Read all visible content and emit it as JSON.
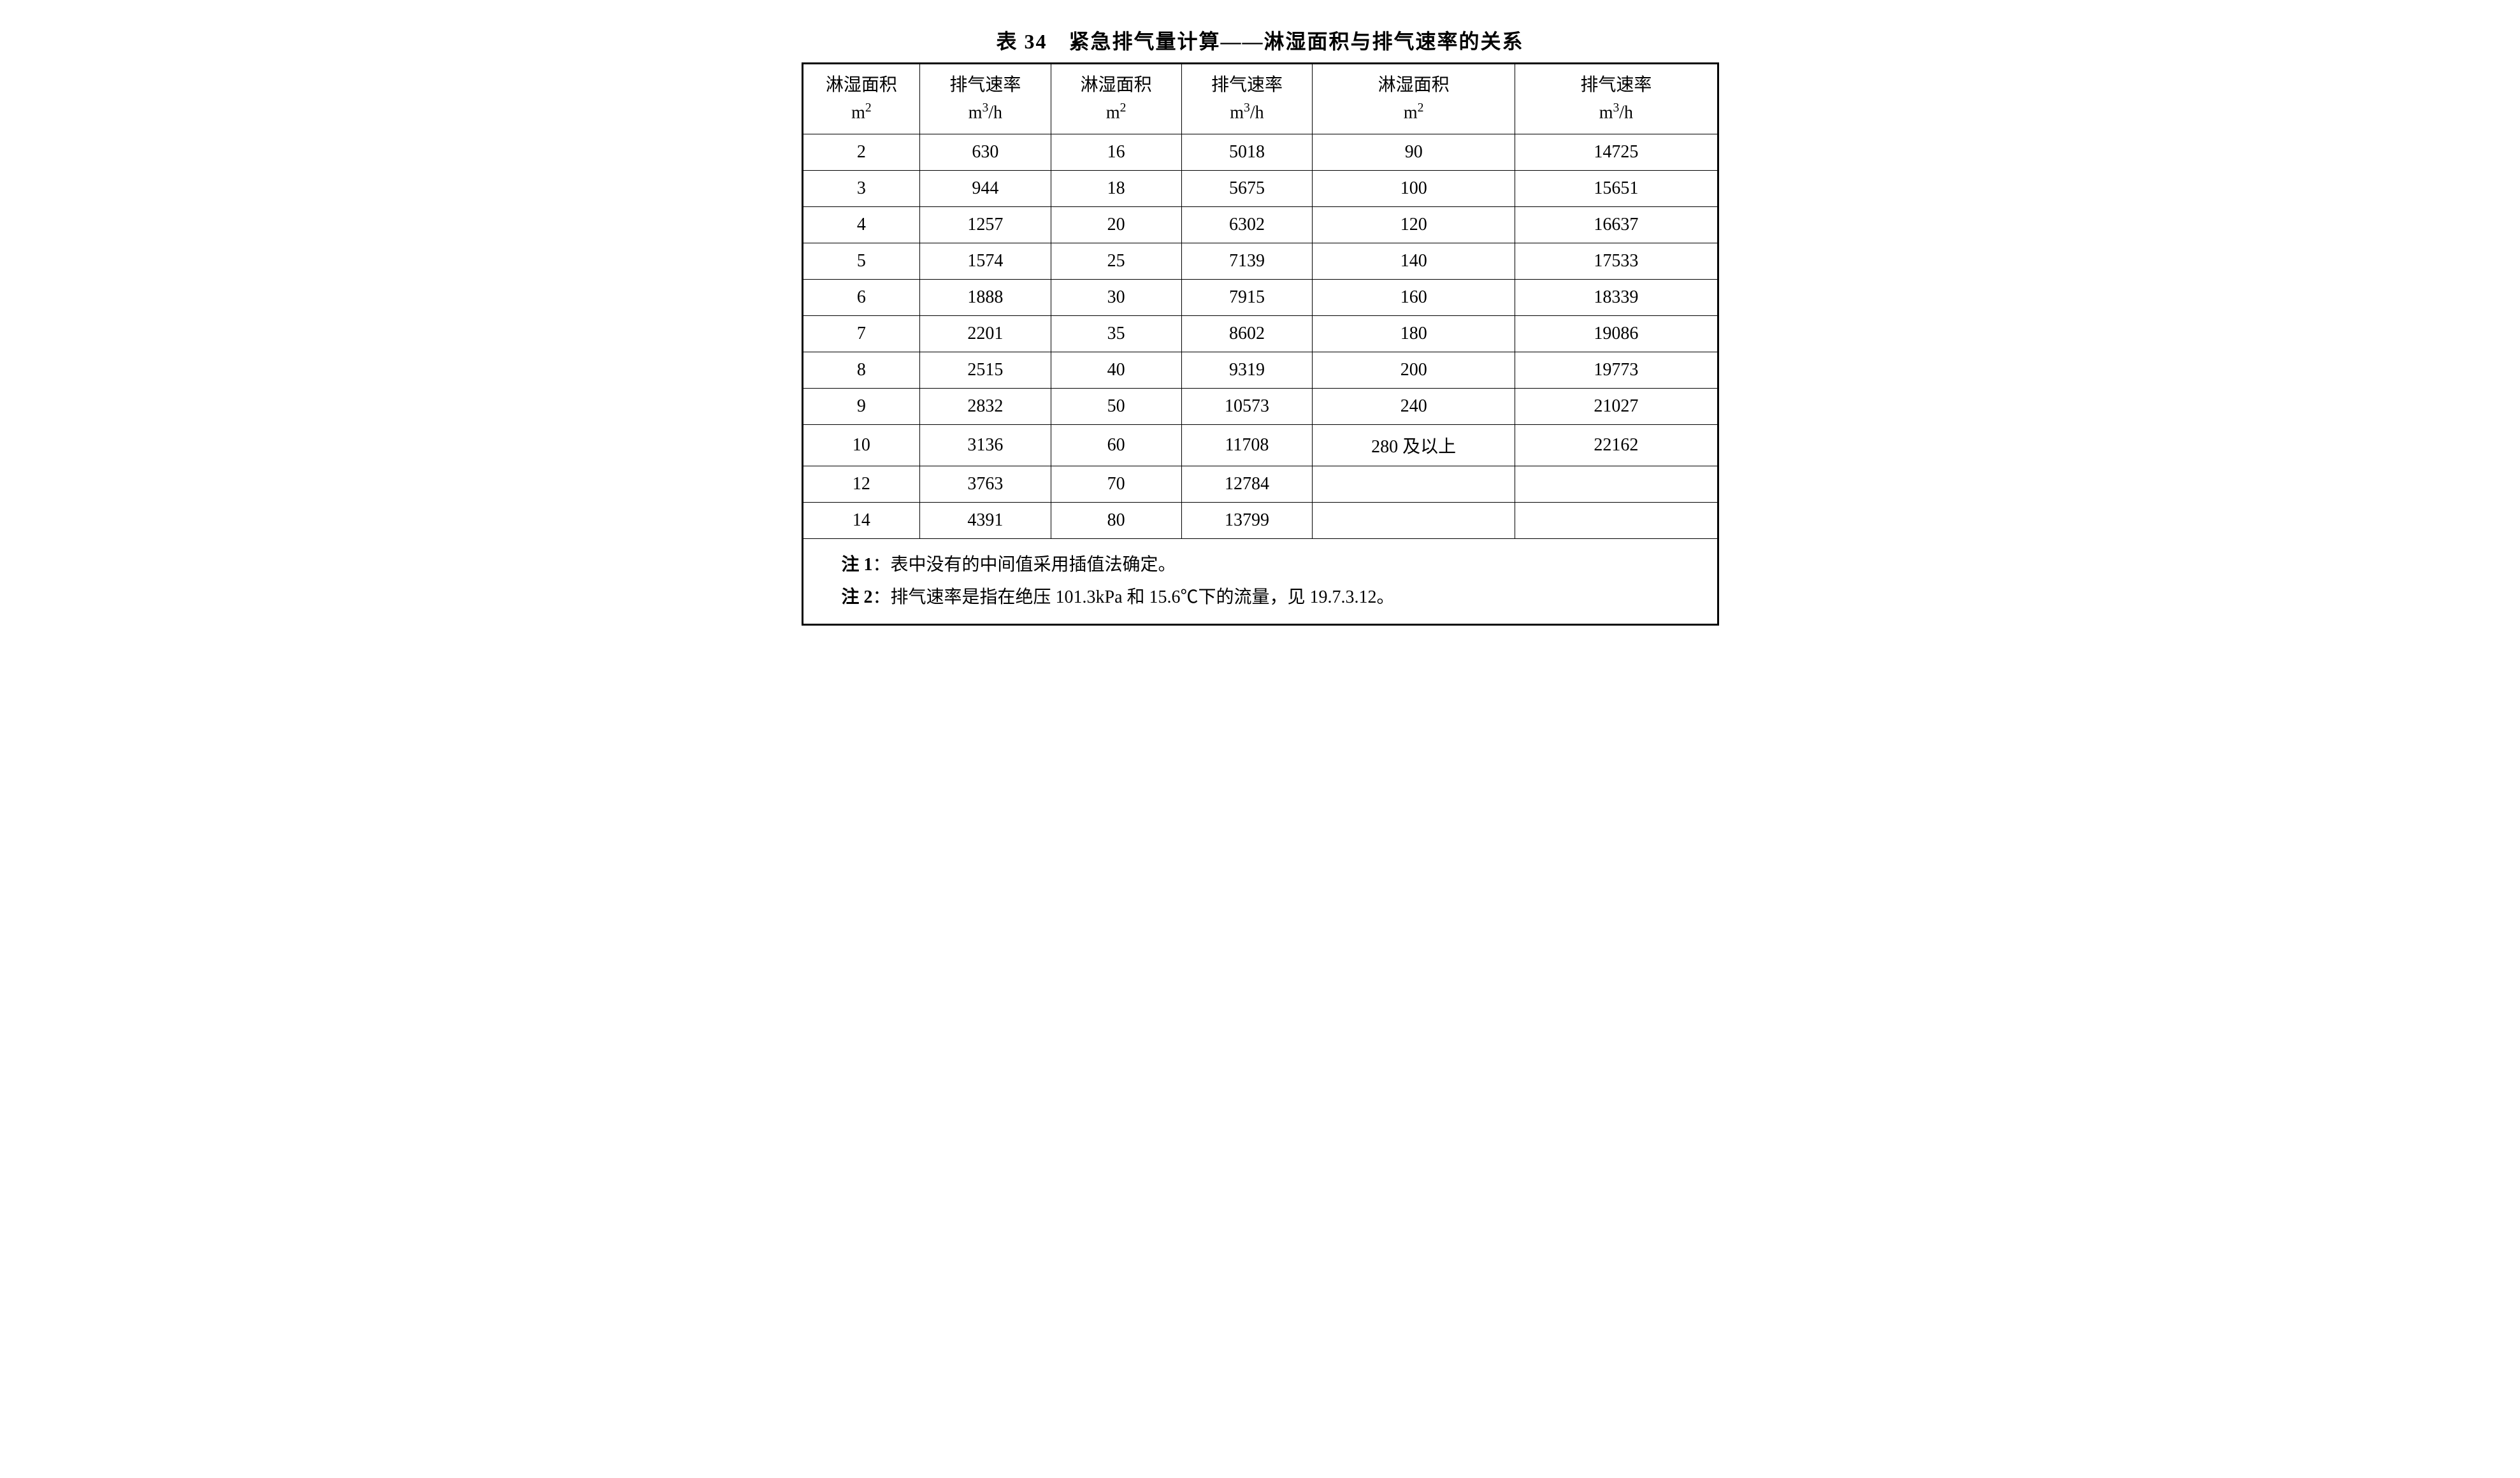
{
  "title": "表 34　紧急排气量计算——淋湿面积与排气速率的关系",
  "headers": {
    "area_label": "淋湿面积",
    "area_unit_html": "m<sup>2</sup>",
    "rate_label": "排气速率",
    "rate_unit_html": "m<sup>3</sup>/h"
  },
  "columns": [
    {
      "width_class": "col-a1"
    },
    {
      "width_class": "col-a2"
    },
    {
      "width_class": "col-b1"
    },
    {
      "width_class": "col-b2"
    },
    {
      "width_class": "col-c1"
    },
    {
      "width_class": "col-c2"
    }
  ],
  "rows": [
    [
      "2",
      "630",
      "16",
      "5018",
      "90",
      "14725"
    ],
    [
      "3",
      "944",
      "18",
      "5675",
      "100",
      "15651"
    ],
    [
      "4",
      "1257",
      "20",
      "6302",
      "120",
      "16637"
    ],
    [
      "5",
      "1574",
      "25",
      "7139",
      "140",
      "17533"
    ],
    [
      "6",
      "1888",
      "30",
      "7915",
      "160",
      "18339"
    ],
    [
      "7",
      "2201",
      "35",
      "8602",
      "180",
      "19086"
    ],
    [
      "8",
      "2515",
      "40",
      "9319",
      "200",
      "19773"
    ],
    [
      "9",
      "2832",
      "50",
      "10573",
      "240",
      "21027"
    ],
    [
      "10",
      "3136",
      "60",
      "11708",
      "280 及以上",
      "22162"
    ],
    [
      "12",
      "3763",
      "70",
      "12784",
      "",
      ""
    ],
    [
      "14",
      "4391",
      "80",
      "13799",
      "",
      ""
    ]
  ],
  "notes": [
    {
      "label": "注 1",
      "text": "：表中没有的中间值采用插值法确定。"
    },
    {
      "label": "注 2",
      "text": "：排气速率是指在绝压 101.3kPa 和 15.6℃下的流量，见 19.7.3.12。"
    }
  ],
  "styling": {
    "background_color": "#ffffff",
    "text_color": "#000000",
    "border_color": "#000000",
    "outer_border_width": 3,
    "inner_border_width": 1.5,
    "title_fontsize": 32,
    "cell_fontsize": 28,
    "notes_fontsize": 28,
    "font_family": "SimSun"
  }
}
